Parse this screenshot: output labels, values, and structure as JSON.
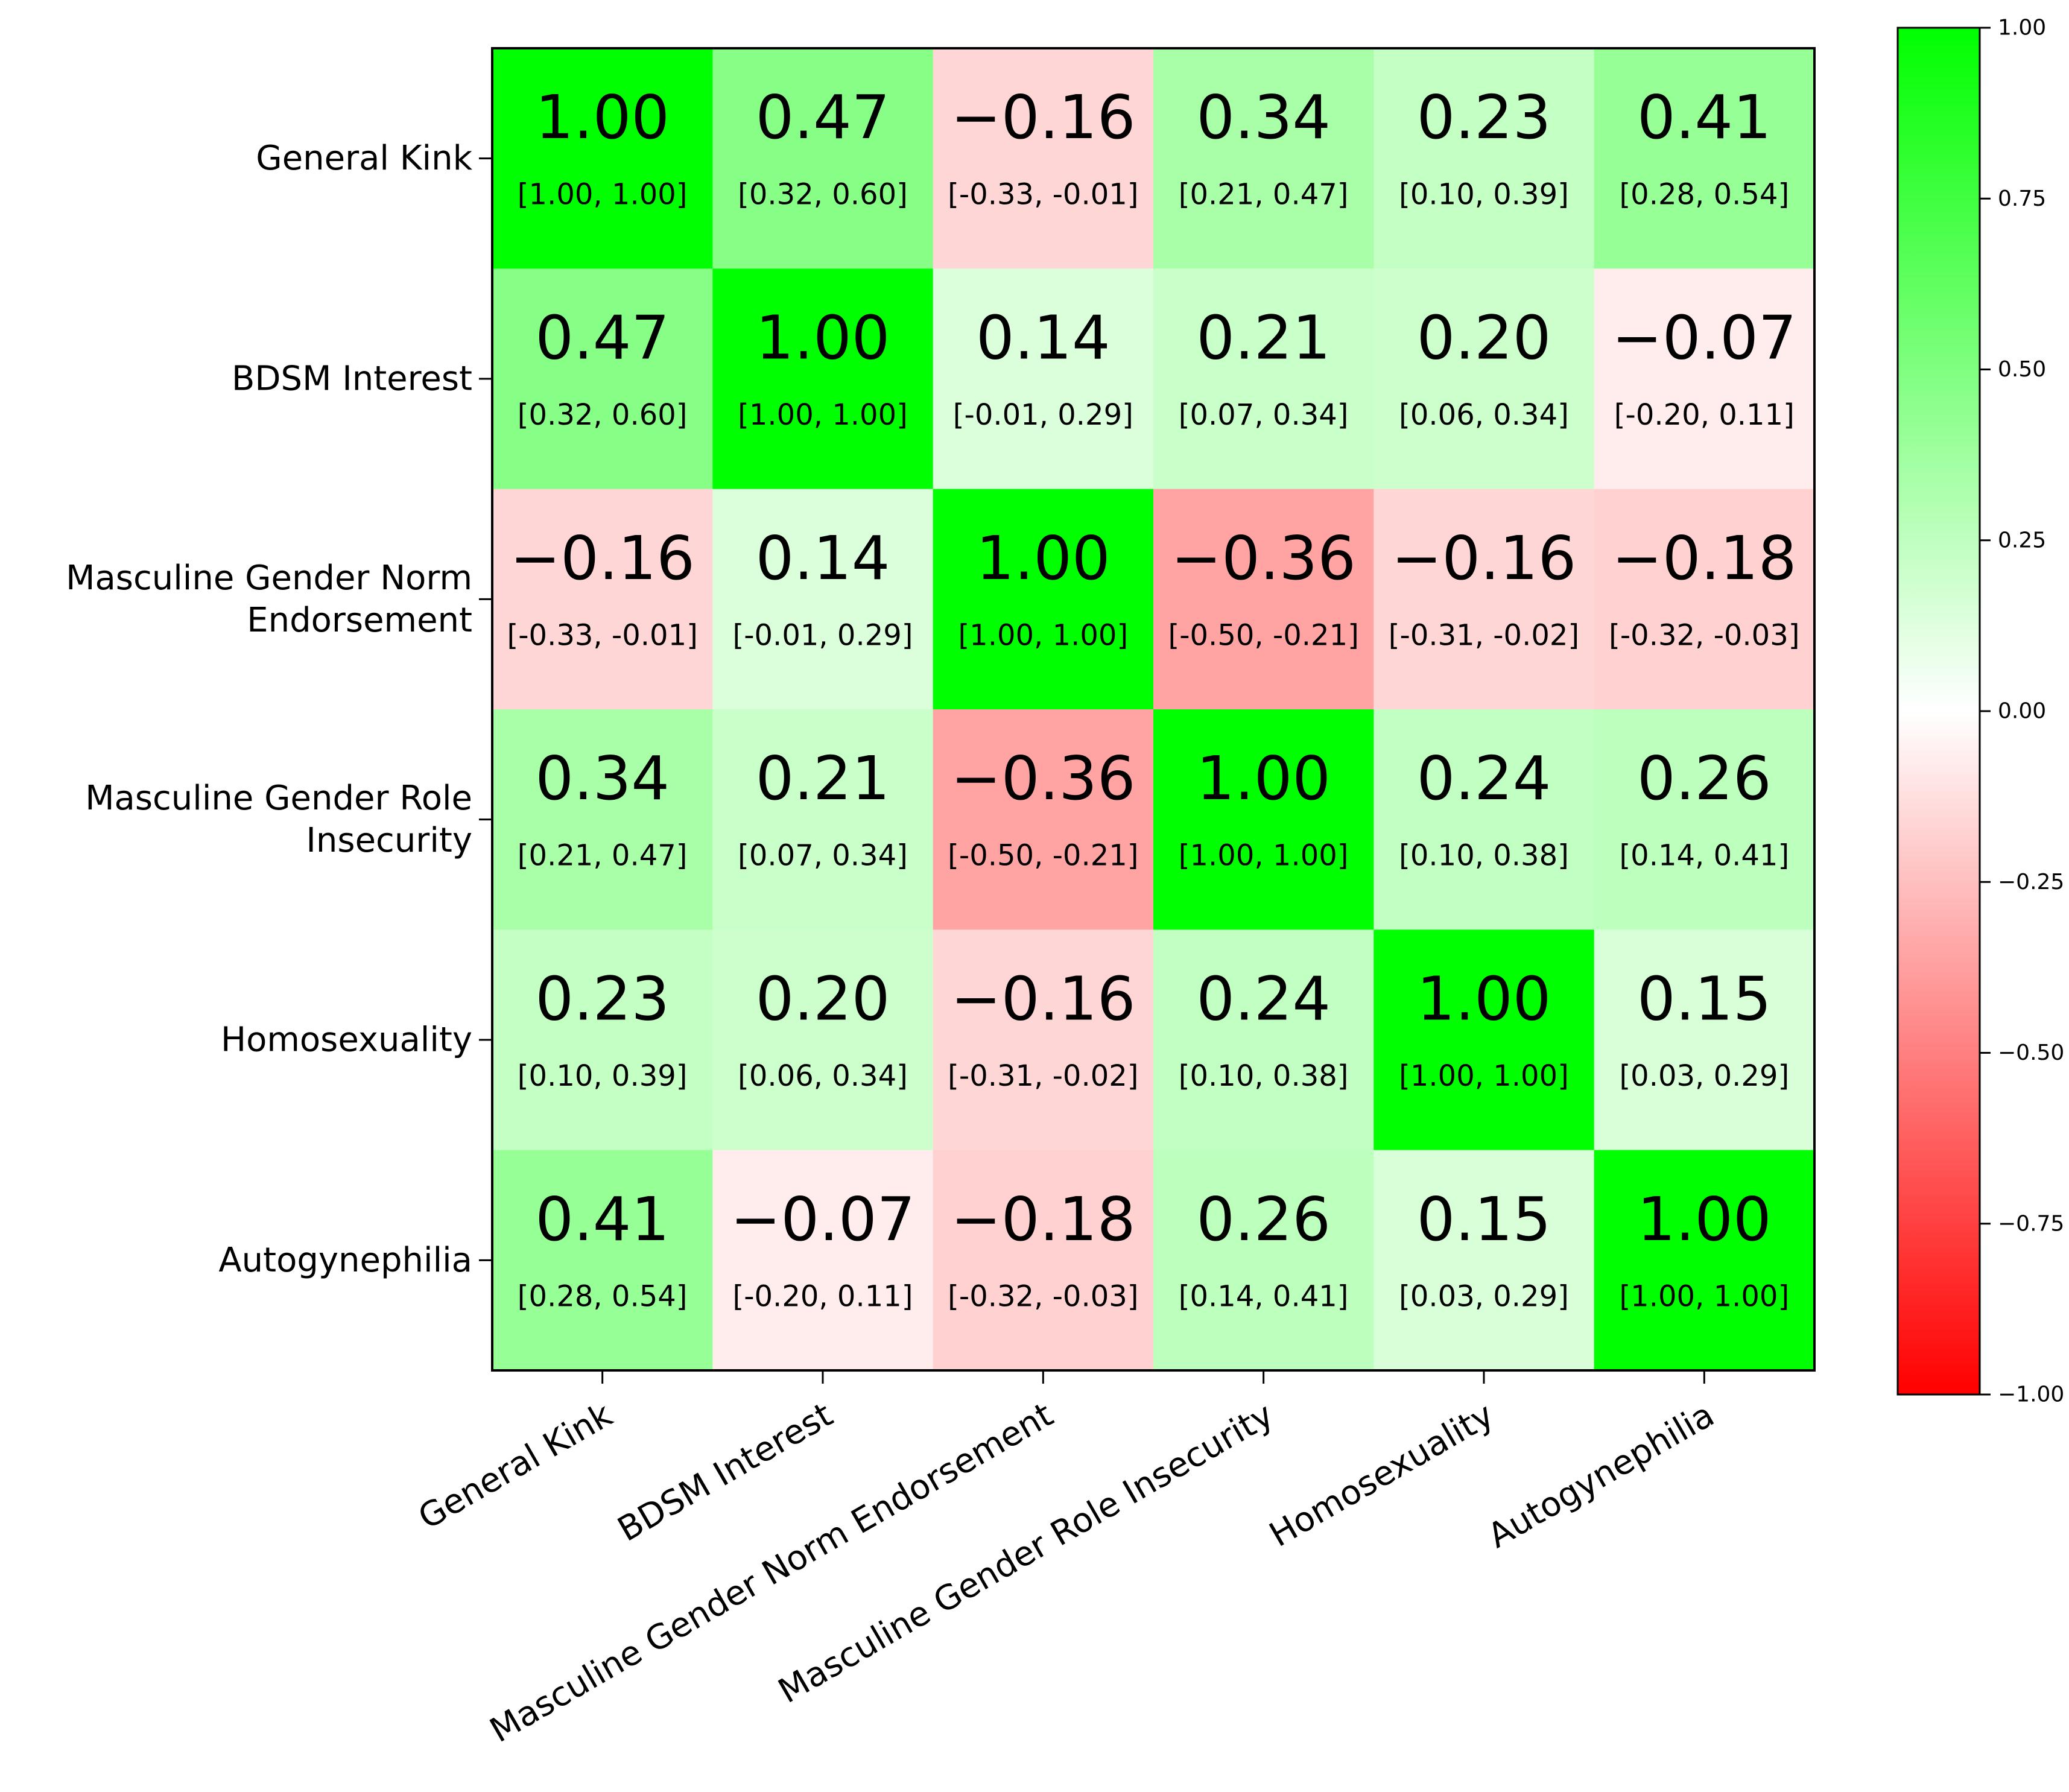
{
  "chart_data": {
    "type": "heatmap",
    "title": "",
    "row_labels": [
      [
        "General Kink"
      ],
      [
        "BDSM Interest"
      ],
      [
        "Masculine Gender Norm",
        "Endorsement"
      ],
      [
        "Masculine Gender Role",
        "Insecurity"
      ],
      [
        "Homosexuality"
      ],
      [
        "Autogynephilia"
      ]
    ],
    "column_labels": [
      "General Kink",
      "BDSM Interest",
      "Masculine Gender Norm Endorsement",
      "Masculine Gender Role Insecurity",
      "Homosexuality",
      "Autogynephilia"
    ],
    "values": [
      [
        1.0,
        0.47,
        -0.16,
        0.34,
        0.23,
        0.41
      ],
      [
        0.47,
        1.0,
        0.14,
        0.21,
        0.2,
        -0.07
      ],
      [
        -0.16,
        0.14,
        1.0,
        -0.36,
        -0.16,
        -0.18
      ],
      [
        0.34,
        0.21,
        -0.36,
        1.0,
        0.24,
        0.26
      ],
      [
        0.23,
        0.2,
        -0.16,
        0.24,
        1.0,
        0.15
      ],
      [
        0.41,
        -0.07,
        -0.18,
        0.26,
        0.15,
        1.0
      ]
    ],
    "value_labels": [
      [
        "1.00",
        "0.47",
        "−0.16",
        "0.34",
        "0.23",
        "0.41"
      ],
      [
        "0.47",
        "1.00",
        "0.14",
        "0.21",
        "0.20",
        "−0.07"
      ],
      [
        "−0.16",
        "0.14",
        "1.00",
        "−0.36",
        "−0.16",
        "−0.18"
      ],
      [
        "0.34",
        "0.21",
        "−0.36",
        "1.00",
        "0.24",
        "0.26"
      ],
      [
        "0.23",
        "0.20",
        "−0.16",
        "0.24",
        "1.00",
        "0.15"
      ],
      [
        "0.41",
        "−0.07",
        "−0.18",
        "0.26",
        "0.15",
        "1.00"
      ]
    ],
    "intervals": [
      [
        "[1.00, 1.00]",
        "[0.32, 0.60]",
        "[-0.33, -0.01]",
        "[0.21, 0.47]",
        "[0.10, 0.39]",
        "[0.28, 0.54]"
      ],
      [
        "[0.32, 0.60]",
        "[1.00, 1.00]",
        "[-0.01, 0.29]",
        "[0.07, 0.34]",
        "[0.06, 0.34]",
        "[-0.20, 0.11]"
      ],
      [
        "[-0.33, -0.01]",
        "[-0.01, 0.29]",
        "[1.00, 1.00]",
        "[-0.50, -0.21]",
        "[-0.31, -0.02]",
        "[-0.32, -0.03]"
      ],
      [
        "[0.21, 0.47]",
        "[0.07, 0.34]",
        "[-0.50, -0.21]",
        "[1.00, 1.00]",
        "[0.10, 0.38]",
        "[0.14, 0.41]"
      ],
      [
        "[0.10, 0.39]",
        "[0.06, 0.34]",
        "[-0.31, -0.02]",
        "[0.10, 0.38]",
        "[1.00, 1.00]",
        "[0.03, 0.29]"
      ],
      [
        "[0.28, 0.54]",
        "[-0.20, 0.11]",
        "[-0.32, -0.03]",
        "[0.14, 0.41]",
        "[0.03, 0.29]",
        "[1.00, 1.00]"
      ]
    ],
    "colorbar": {
      "vmin": -1.0,
      "vmax": 1.0,
      "ticks": [
        1.0,
        0.75,
        0.5,
        0.25,
        0.0,
        -0.25,
        -0.5,
        -0.75,
        -1.0
      ],
      "tick_labels": [
        "1.00",
        "0.75",
        "0.50",
        "0.25",
        "0.00",
        "−0.25",
        "−0.50",
        "−0.75",
        "−1.00"
      ],
      "color_min": "#ff0000",
      "color_mid": "#ffffff",
      "color_max": "#00ff00"
    },
    "xlabel": "",
    "ylabel": "",
    "grid": false
  }
}
